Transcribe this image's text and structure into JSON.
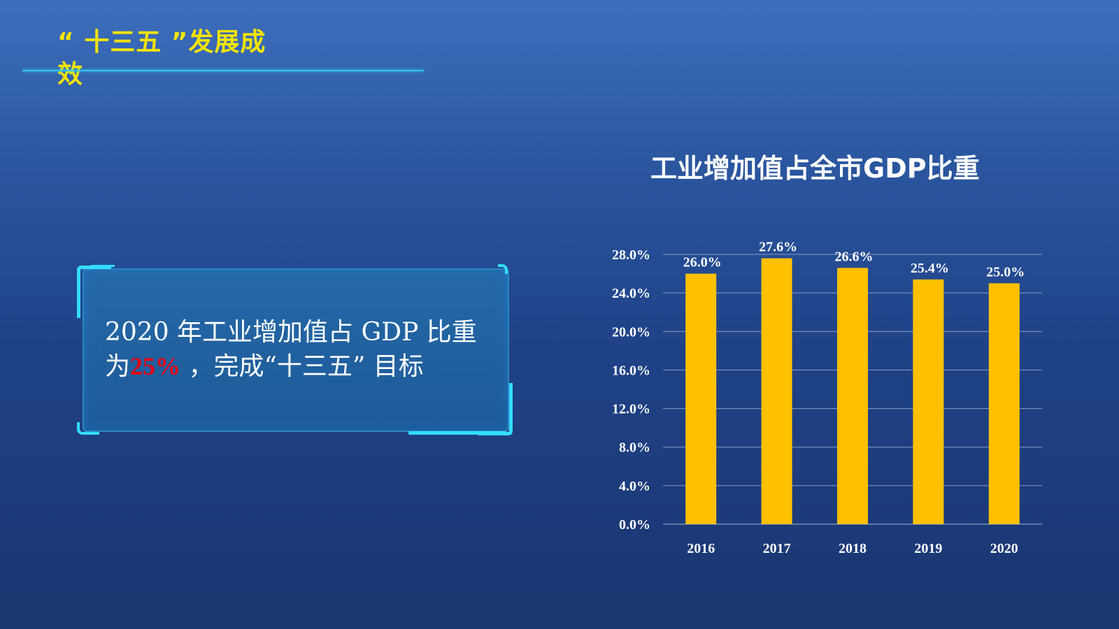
{
  "slide": {
    "title": "“ 十三五 ”发展成效"
  },
  "callout": {
    "text_before": "2020 年工业增加值占 GDP 比重为",
    "highlight": "25%",
    "text_after": " ，完成“十三五” 目标",
    "highlight_color": "#e60012"
  },
  "colors": {
    "title_yellow": "#f4e400",
    "accent_cyan": "#34dcff",
    "bar": "#ffc000"
  },
  "chart_data": {
    "type": "bar",
    "title": "工业增加值占全市GDP比重",
    "categories": [
      "2016",
      "2017",
      "2018",
      "2019",
      "2020"
    ],
    "values": [
      26.0,
      27.6,
      26.6,
      25.4,
      25.0
    ],
    "value_labels": [
      "26.0%",
      "27.6%",
      "26.6%",
      "25.4%",
      "25.0%"
    ],
    "y_ticks": [
      "0.0%",
      "4.0%",
      "8.0%",
      "12.0%",
      "16.0%",
      "20.0%",
      "24.0%",
      "28.0%"
    ],
    "ylim": [
      0,
      28
    ],
    "xlabel": "",
    "ylabel": "",
    "grid": true,
    "legend": "none"
  }
}
